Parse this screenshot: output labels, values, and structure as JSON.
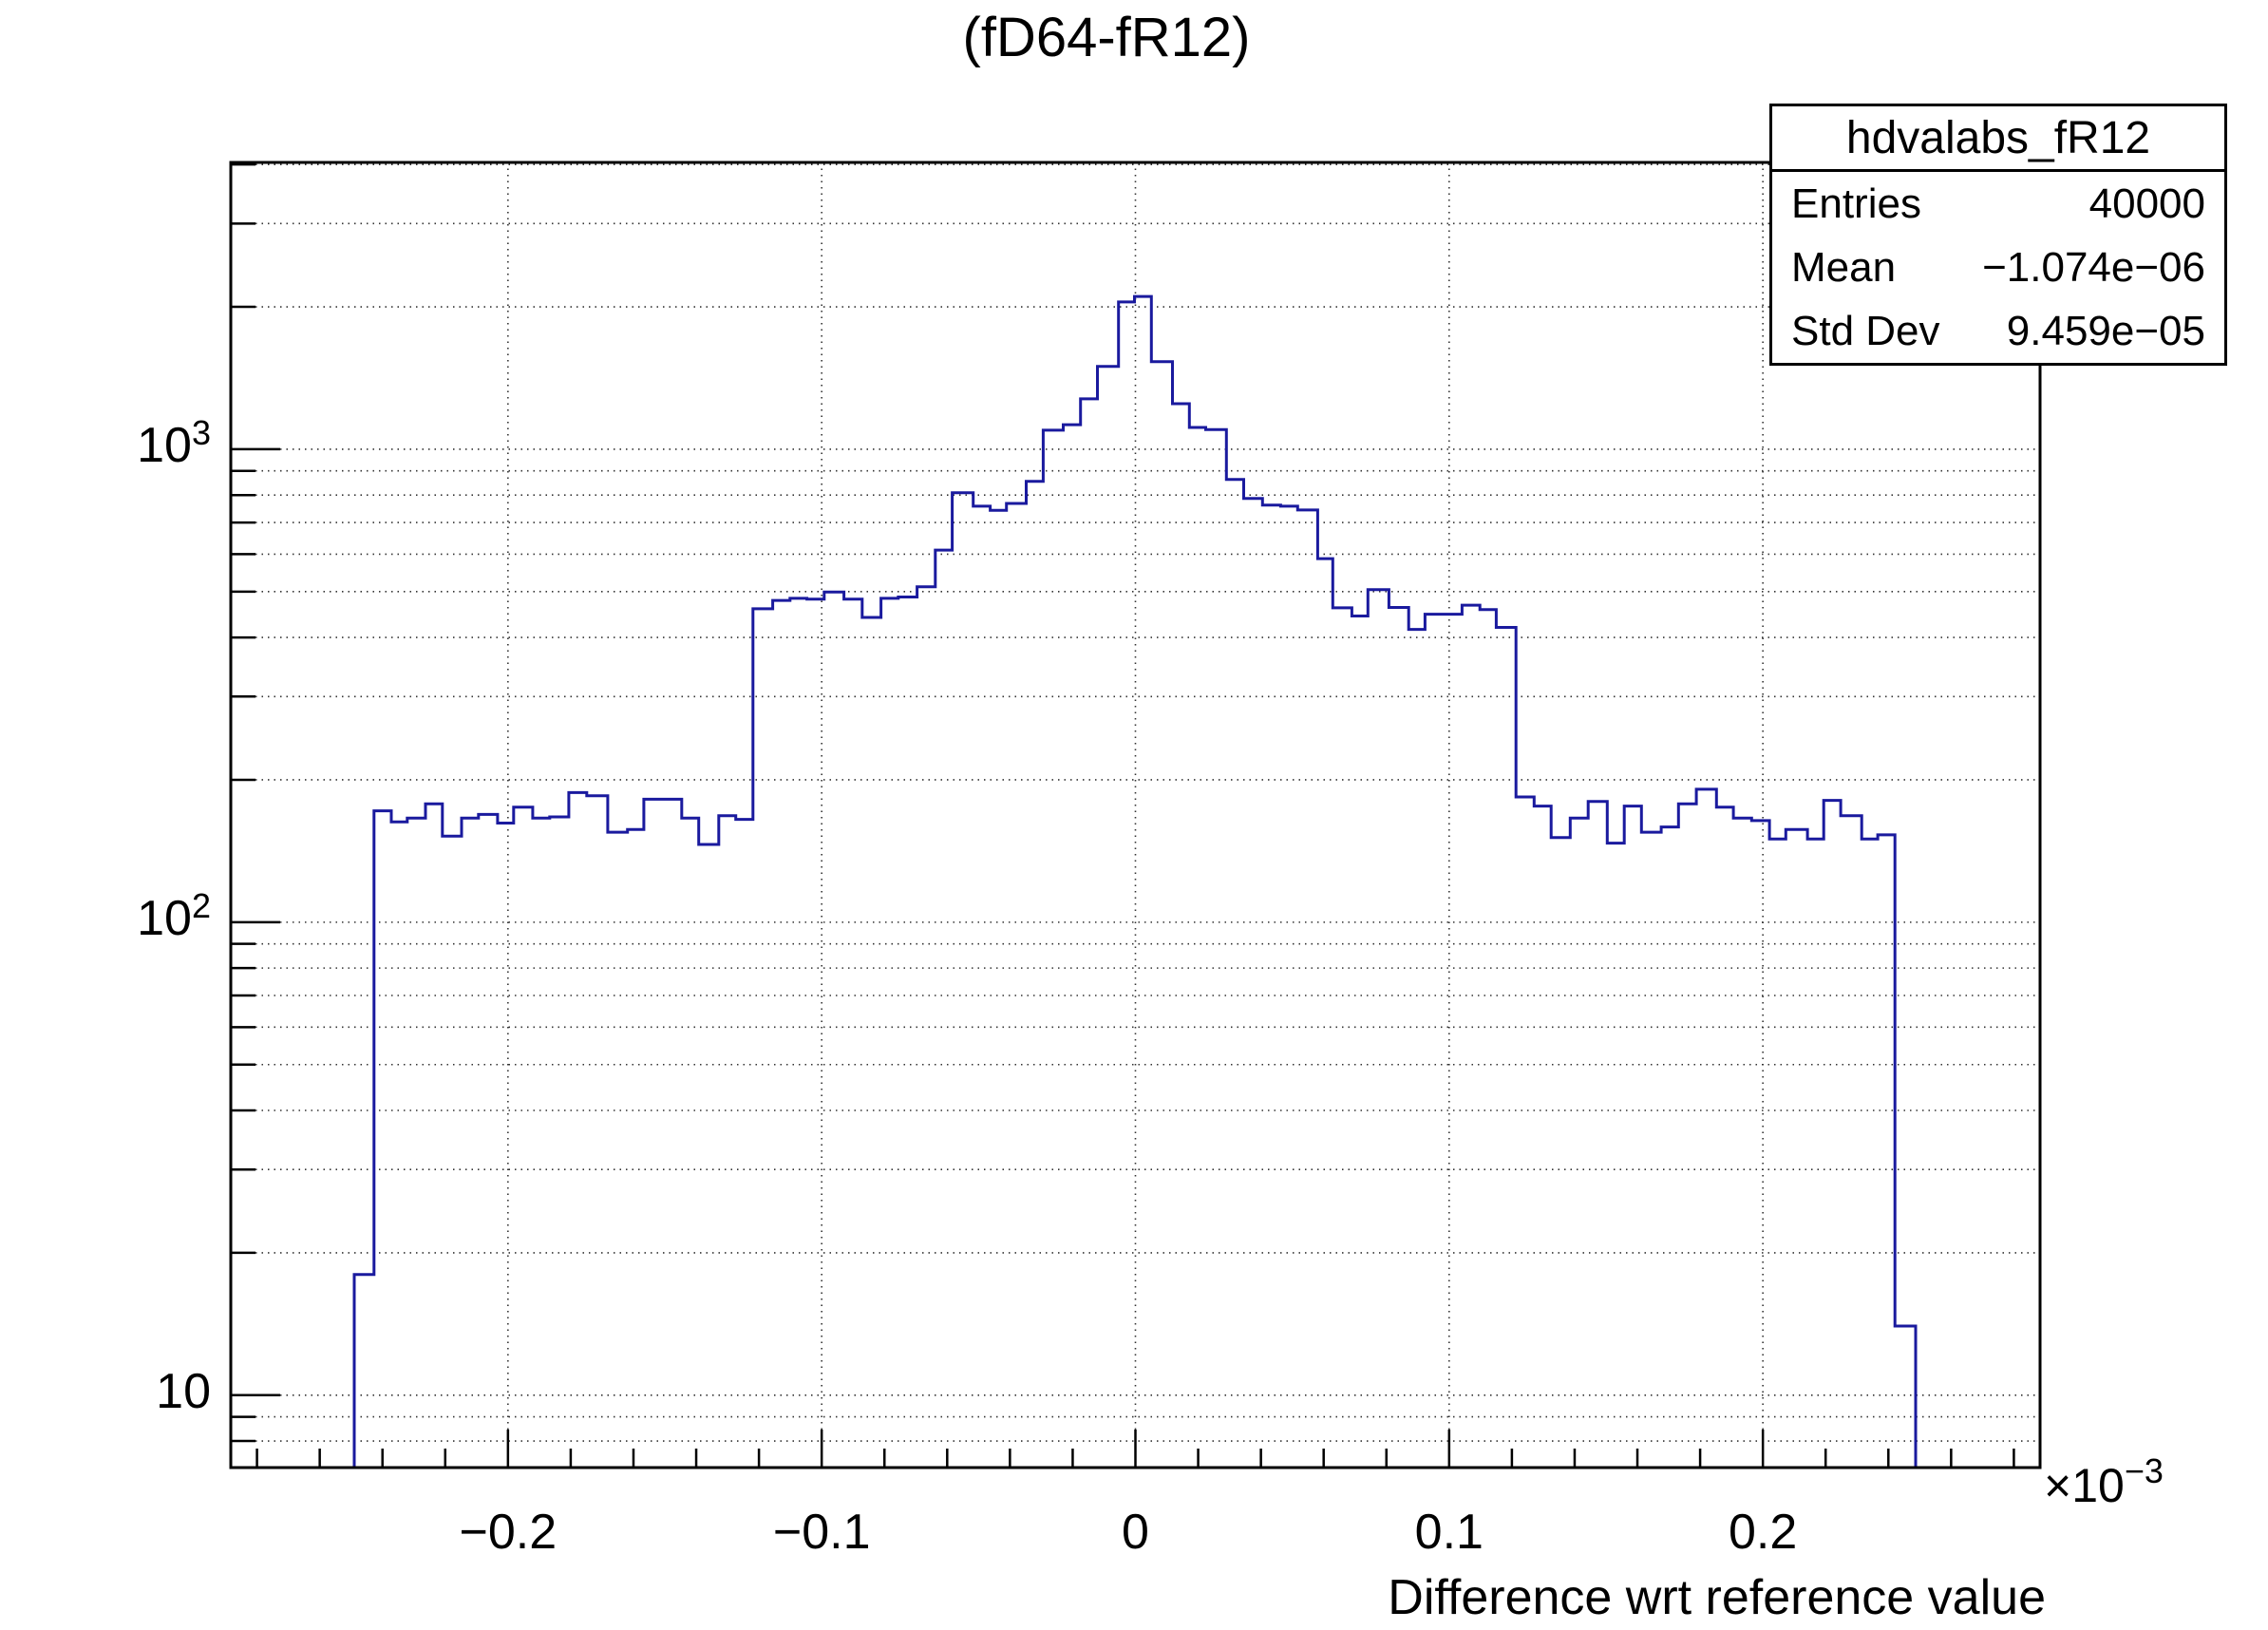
{
  "title": "(fD64-fR12)",
  "stats": {
    "name": "hdvalabs_fR12",
    "entries_label": "Entries",
    "entries_value": "40000",
    "mean_label": "Mean",
    "mean_value": "−1.074e−06",
    "stddev_label": "Std Dev",
    "stddev_value": "9.459e−05"
  },
  "axes": {
    "x_title": "Difference wrt reference value",
    "x_exponent_base": "×10",
    "x_exponent_sup": "−3",
    "x_tick_labels": [
      "−0.2",
      "−0.1",
      "0",
      "0.1",
      "0.2"
    ],
    "y_tick_labels": [
      {
        "value": 10,
        "base": "10",
        "sup": ""
      },
      {
        "value": 100,
        "base": "10",
        "sup": "2"
      },
      {
        "value": 1000,
        "base": "10",
        "sup": "3"
      }
    ]
  },
  "chart_data": {
    "type": "histogram-step",
    "title": "(fD64-fR12)",
    "xlabel": "Difference wrt reference value",
    "ylabel": "",
    "x_scale_factor": "1e-3",
    "y_scale": "log",
    "x_range": [
      -0.28835,
      0.28835
    ],
    "y_range": [
      7.03,
      4040
    ],
    "x_major_ticks": [
      -0.2,
      -0.1,
      0,
      0.1,
      0.2
    ],
    "x_minor_step": 0.02,
    "grid": true,
    "line_color": "#1a1a9e",
    "bin_edges": [
      -0.249,
      -0.2427,
      -0.2372,
      -0.2321,
      -0.2263,
      -0.2209,
      -0.2148,
      -0.2094,
      -0.2033,
      -0.1982,
      -0.1921,
      -0.1867,
      -0.1806,
      -0.1749,
      -0.1682,
      -0.1619,
      -0.1567,
      -0.1507,
      -0.1446,
      -0.1392,
      -0.1328,
      -0.1274,
      -0.1219,
      -0.1156,
      -0.1101,
      -0.1047,
      -0.0992,
      -0.0929,
      -0.0871,
      -0.0811,
      -0.0756,
      -0.0696,
      -0.0638,
      -0.0584,
      -0.0517,
      -0.0463,
      -0.0411,
      -0.0348,
      -0.0294,
      -0.023,
      -0.0175,
      -0.0121,
      -0.0054,
      -0.0003,
      0.0051,
      0.0118,
      0.0172,
      0.0224,
      0.029,
      0.0345,
      0.0405,
      0.0463,
      0.0517,
      0.0581,
      0.0629,
      0.069,
      0.0741,
      0.0808,
      0.0871,
      0.0923,
      0.0983,
      0.1041,
      0.1098,
      0.115,
      0.1213,
      0.1271,
      0.1325,
      0.1386,
      0.1443,
      0.1504,
      0.1558,
      0.1613,
      0.1676,
      0.1731,
      0.1788,
      0.1852,
      0.1906,
      0.1964,
      0.2021,
      0.2073,
      0.2142,
      0.2194,
      0.2248,
      0.2315,
      0.2366,
      0.2421,
      0.2487
    ],
    "counts": [
      18,
      172,
      163,
      166,
      178,
      152,
      166,
      169,
      162,
      175,
      166,
      167,
      188,
      185,
      155,
      157,
      182,
      182,
      166,
      146,
      168,
      165,
      460,
      479,
      484,
      482,
      499,
      482,
      441,
      484,
      487,
      512,
      612,
      809,
      758,
      743,
      768,
      855,
      1097,
      1127,
      1278,
      1496,
      2048,
      2104,
      1531,
      1248,
      1112,
      1100,
      863,
      787,
      762,
      758,
      744,
      587,
      462,
      444,
      505,
      463,
      416,
      448,
      448,
      468,
      458,
      420,
      184,
      176,
      151,
      166,
      180,
      147,
      176,
      155,
      159,
      178,
      191,
      175,
      166,
      164,
      150,
      157,
      150,
      181,
      168,
      150,
      153,
      14
    ]
  }
}
